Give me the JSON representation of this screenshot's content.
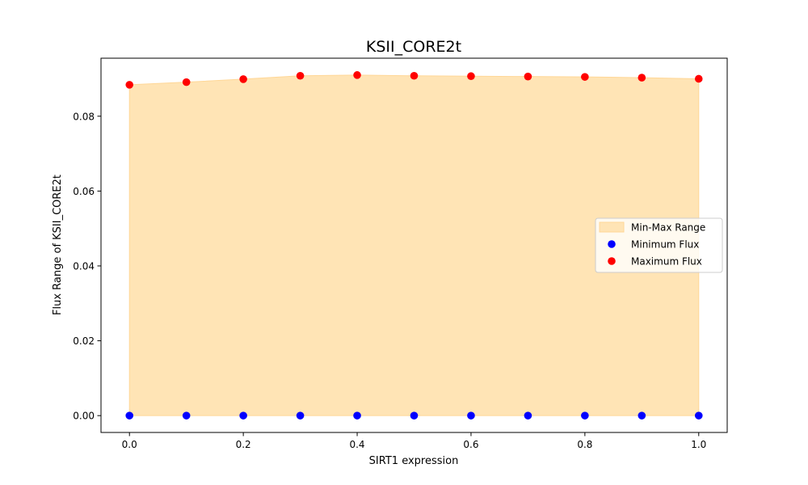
{
  "chart_data": {
    "type": "area",
    "title": "KSII_CORE2t",
    "xlabel": "SIRT1 expression",
    "ylabel": "Flux Range of KSII_CORE2t",
    "xlim": [
      -0.05,
      1.05
    ],
    "ylim": [
      -0.0045,
      0.0955
    ],
    "x_ticks": [
      0.0,
      0.2,
      0.4,
      0.6,
      0.8,
      1.0
    ],
    "x_tick_labels": [
      "0.0",
      "0.2",
      "0.4",
      "0.6",
      "0.8",
      "1.0"
    ],
    "y_ticks": [
      0.0,
      0.02,
      0.04,
      0.06,
      0.08
    ],
    "y_tick_labels": [
      "0.00",
      "0.02",
      "0.04",
      "0.06",
      "0.08"
    ],
    "grid": false,
    "legend_position": "center-right",
    "x": [
      0.0,
      0.1,
      0.2,
      0.3,
      0.4,
      0.5,
      0.6,
      0.7,
      0.8,
      0.9,
      1.0
    ],
    "series": [
      {
        "name": "Min-Max Range",
        "kind": "fill_between",
        "color": "#ffe4b5",
        "edge_color": "#ffd797"
      },
      {
        "name": "Minimum Flux",
        "kind": "scatter",
        "color": "#0000ff",
        "values": [
          0,
          0,
          0,
          0,
          0,
          0,
          0,
          0,
          0,
          0,
          0
        ]
      },
      {
        "name": "Maximum Flux",
        "kind": "scatter",
        "color": "#ff0000",
        "values": [
          0.0884,
          0.0891,
          0.0899,
          0.0908,
          0.091,
          0.0908,
          0.0907,
          0.0906,
          0.0905,
          0.0903,
          0.09
        ]
      }
    ]
  }
}
